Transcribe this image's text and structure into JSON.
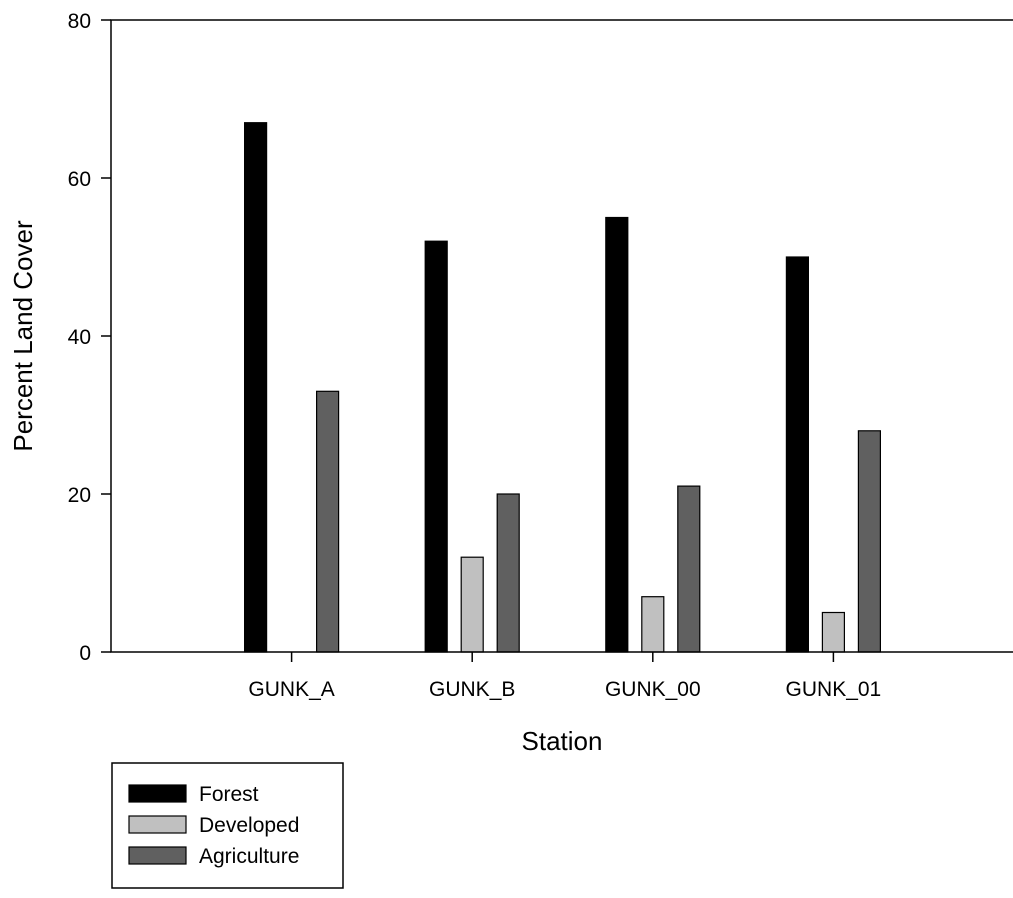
{
  "chart_data": {
    "type": "bar",
    "xlabel": "Station",
    "ylabel": "Percent Land Cover",
    "categories": [
      "GUNK_A",
      "GUNK_B",
      "GUNK_00",
      "GUNK_01"
    ],
    "ylim": [
      0,
      80
    ],
    "yticks": [
      0,
      20,
      40,
      60,
      80
    ],
    "ytick_labels": [
      "0",
      "20",
      "40",
      "60",
      "80"
    ],
    "grid": false,
    "legend_position": "bottom-left",
    "series": [
      {
        "name": "Forest",
        "color": "#000000",
        "values": [
          67,
          52,
          55,
          50
        ]
      },
      {
        "name": "Developed",
        "color": "#c0c0c0",
        "values": [
          0,
          12,
          7,
          5
        ]
      },
      {
        "name": "Agriculture",
        "color": "#606060",
        "values": [
          33,
          20,
          21,
          28
        ]
      }
    ]
  }
}
